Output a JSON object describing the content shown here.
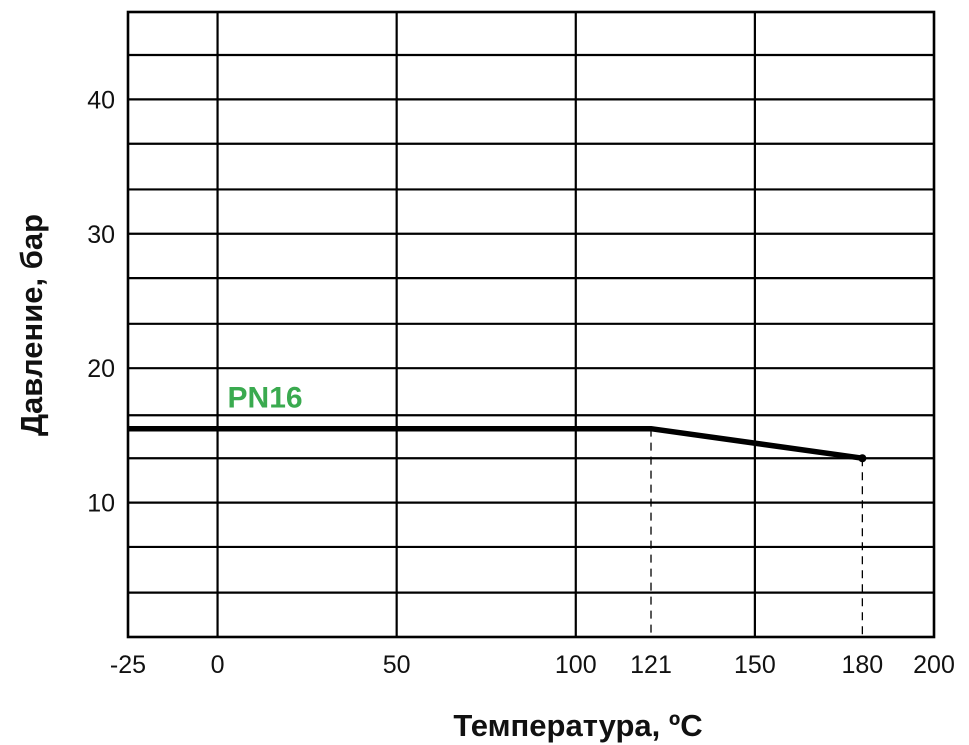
{
  "chart_data": {
    "type": "line",
    "title": "",
    "xlabel": "Температура, ºC",
    "ylabel": "Давление, бар",
    "x_ticks": [
      -25,
      0,
      50,
      100,
      121,
      150,
      180,
      200
    ],
    "x_tick_labels": [
      "-25",
      "0",
      "50",
      "100",
      "121",
      "150",
      "180",
      "200"
    ],
    "y_ticks": [
      10,
      20,
      30,
      40
    ],
    "y_tick_labels": [
      "10",
      "20",
      "30",
      "40"
    ],
    "xlim": [
      -25,
      200
    ],
    "ylim": [
      0,
      46.5
    ],
    "x_gridlines": [
      0,
      50,
      100,
      150
    ],
    "y_gridlines": [
      3.3,
      6.7,
      10,
      13.3,
      16.5,
      20,
      23.3,
      26.7,
      30,
      33.3,
      36.7,
      40,
      43.3
    ],
    "dashed_verticals": [
      121,
      180
    ],
    "grid": true,
    "series": [
      {
        "name": "PN16",
        "color": "#3aaa4f",
        "line_color": "#000000",
        "x": [
          -25,
          121,
          180
        ],
        "y": [
          15.5,
          15.5,
          13.3
        ]
      }
    ]
  }
}
